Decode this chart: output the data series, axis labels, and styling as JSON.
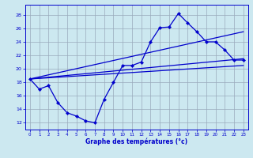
{
  "bg_color": "#cce8f0",
  "grid_color": "#99aabb",
  "line_color": "#0000cc",
  "xlabel": "Graphe des températures (°c)",
  "x_ticks": [
    0,
    1,
    2,
    3,
    4,
    5,
    6,
    7,
    8,
    9,
    10,
    11,
    12,
    13,
    14,
    15,
    16,
    17,
    18,
    19,
    20,
    21,
    22,
    23
  ],
  "y_ticks": [
    12,
    14,
    16,
    18,
    20,
    22,
    24,
    26,
    28
  ],
  "ylim": [
    11.0,
    29.5
  ],
  "xlim": [
    -0.5,
    23.5
  ],
  "line_main": {
    "x": [
      0,
      1,
      2,
      3,
      4,
      5,
      6,
      7,
      8,
      9,
      10,
      11,
      12,
      13,
      14,
      15,
      16,
      17,
      18,
      19,
      20,
      21,
      22,
      23
    ],
    "y": [
      18.5,
      17.0,
      17.5,
      15.0,
      13.5,
      13.0,
      12.3,
      12.0,
      15.5,
      18.0,
      20.5,
      20.5,
      21.0,
      24.0,
      26.1,
      26.2,
      28.2,
      26.8,
      25.5,
      24.0,
      24.0,
      22.8,
      21.3,
      21.3
    ]
  },
  "line_straight1": {
    "x": [
      0,
      23
    ],
    "y": [
      18.5,
      25.5
    ]
  },
  "line_straight2": {
    "x": [
      0,
      23
    ],
    "y": [
      18.5,
      21.5
    ]
  },
  "line_straight3": {
    "x": [
      0,
      23
    ],
    "y": [
      18.5,
      20.5
    ]
  }
}
